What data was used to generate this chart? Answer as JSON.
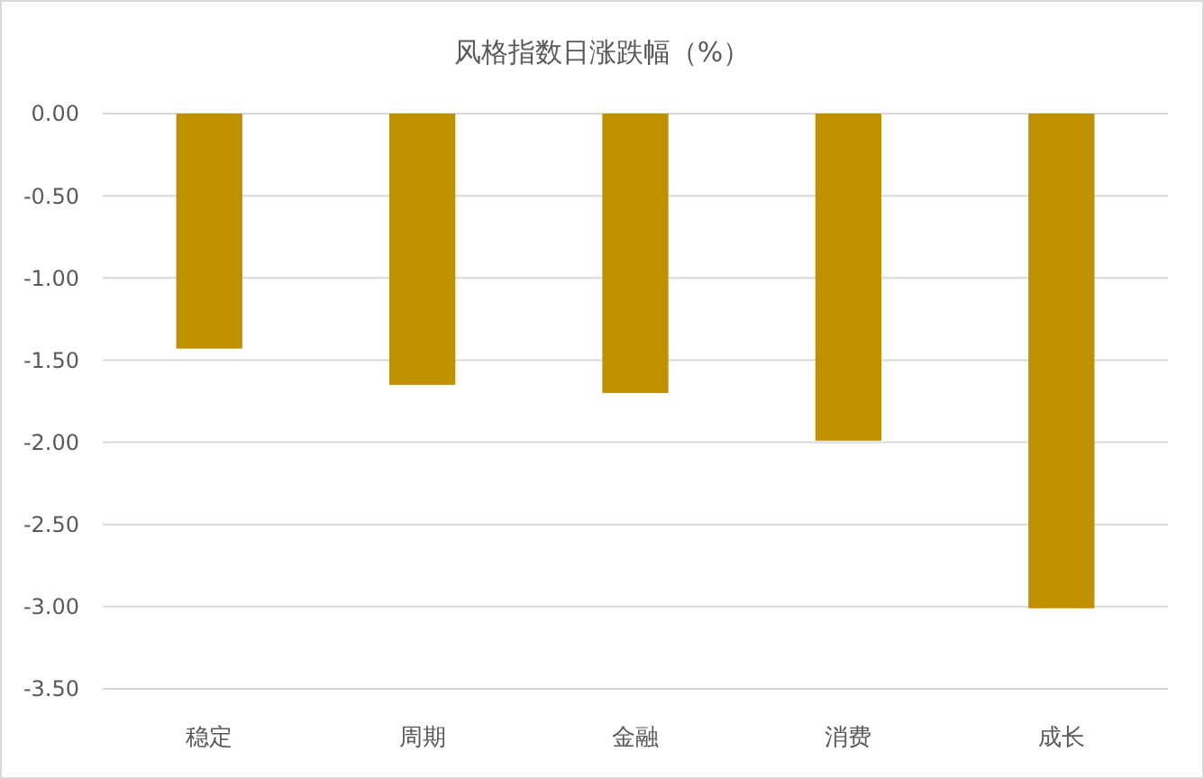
{
  "chart_data": {
    "type": "bar",
    "title": "风格指数日涨跌幅（%）",
    "categories": [
      "稳定",
      "周期",
      "金融",
      "消费",
      "成长"
    ],
    "values": [
      -1.43,
      -1.65,
      -1.7,
      -1.99,
      -3.01
    ],
    "color": "#bf9000",
    "ylim": [
      -3.5,
      0
    ],
    "yticks": [
      {
        "value": 0,
        "label": "0.00"
      },
      {
        "value": -0.5,
        "label": "-0.50"
      },
      {
        "value": -1,
        "label": "-1.00"
      },
      {
        "value": -1.5,
        "label": "-1.50"
      },
      {
        "value": -2,
        "label": "-2.00"
      },
      {
        "value": -2.5,
        "label": "-2.50"
      },
      {
        "value": -3,
        "label": "-3.00"
      },
      {
        "value": -3.5,
        "label": "-3.50"
      }
    ],
    "grid": "y"
  }
}
